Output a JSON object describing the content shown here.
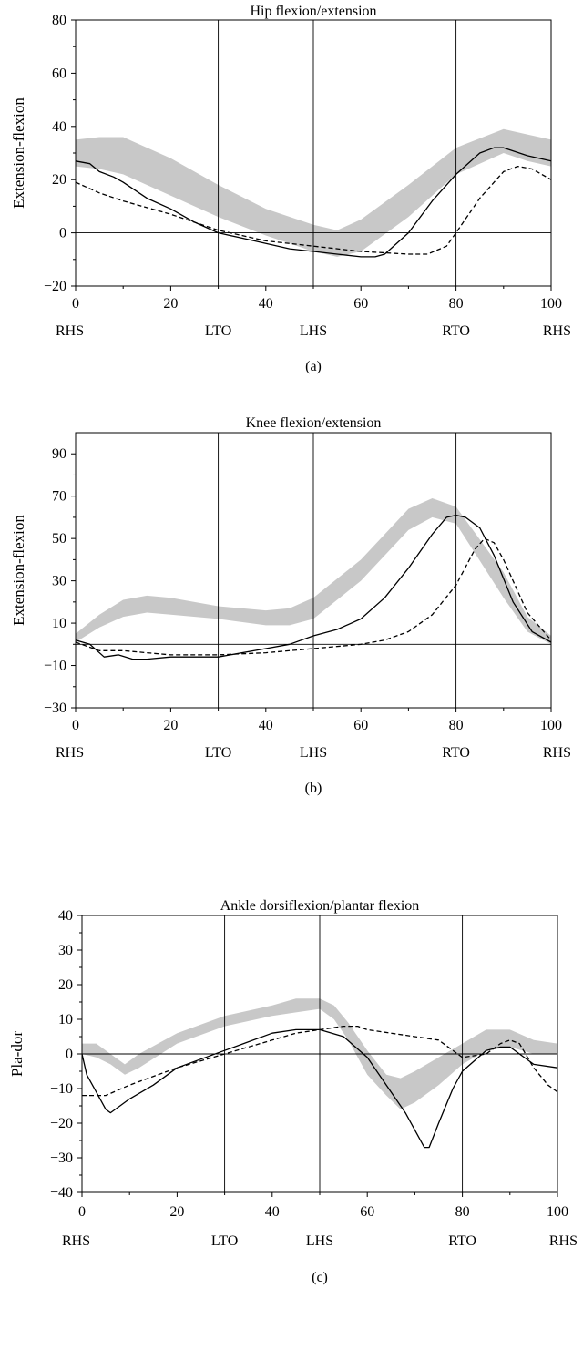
{
  "chart_data": [
    {
      "type": "line",
      "title": "Hip flexion/extension",
      "ylabel": "Extension-flexion",
      "xlabel": "",
      "xlim": [
        0,
        100
      ],
      "ylim": [
        -20,
        80
      ],
      "xticks": [
        0,
        20,
        40,
        60,
        80,
        100
      ],
      "yticks": [
        -20,
        0,
        20,
        40,
        60,
        80
      ],
      "ytick_labels": [
        "−20",
        "0",
        "20",
        "40",
        "60",
        "80"
      ],
      "event_lines": [
        30,
        50,
        80
      ],
      "event_labels": [
        {
          "x": 0,
          "label": "RHS"
        },
        {
          "x": 30,
          "label": "LTO"
        },
        {
          "x": 50,
          "label": "LHS"
        },
        {
          "x": 80,
          "label": "RTO"
        },
        {
          "x": 100,
          "label": "RHS"
        }
      ],
      "zero_line": 0,
      "subcaption": "(a)",
      "grid": false,
      "band": {
        "x": [
          0,
          5,
          10,
          20,
          30,
          40,
          50,
          55,
          60,
          70,
          80,
          90,
          95,
          100
        ],
        "upper": [
          35,
          36,
          36,
          28,
          18,
          9,
          3,
          1,
          5,
          18,
          32,
          39,
          37,
          35
        ],
        "lower": [
          25,
          24,
          22,
          14,
          6,
          -1,
          -7,
          -9,
          -7,
          6,
          22,
          30,
          27,
          25
        ]
      },
      "series": [
        {
          "style": "solid",
          "x": [
            0,
            3,
            5,
            8,
            10,
            15,
            20,
            25,
            30,
            35,
            40,
            45,
            50,
            55,
            60,
            63,
            65,
            70,
            75,
            80,
            85,
            88,
            90,
            95,
            100
          ],
          "values": [
            27,
            26,
            23,
            21,
            19,
            13,
            9,
            4,
            0,
            -2,
            -4,
            -6,
            -7,
            -8,
            -9,
            -9,
            -8,
            0,
            12,
            22,
            30,
            32,
            32,
            29,
            27
          ]
        },
        {
          "style": "dashed",
          "x": [
            0,
            5,
            10,
            20,
            30,
            40,
            50,
            60,
            70,
            74,
            78,
            80,
            85,
            90,
            93,
            96,
            100
          ],
          "values": [
            19,
            15,
            12,
            7,
            1,
            -3,
            -5,
            -7,
            -8,
            -8,
            -5,
            0,
            13,
            23,
            25,
            24,
            20
          ]
        }
      ]
    },
    {
      "type": "line",
      "title": "Knee flexion/extension",
      "ylabel": "Extension-flexion",
      "xlabel": "",
      "xlim": [
        0,
        100
      ],
      "ylim": [
        -30,
        100
      ],
      "xticks": [
        0,
        20,
        40,
        60,
        80,
        100
      ],
      "yticks": [
        -30,
        -10,
        10,
        30,
        50,
        70,
        90
      ],
      "ytick_labels": [
        "−30",
        "−10",
        "10",
        "30",
        "50",
        "70",
        "90"
      ],
      "event_lines": [
        30,
        50,
        80
      ],
      "event_labels": [
        {
          "x": 0,
          "label": "RHS"
        },
        {
          "x": 30,
          "label": "LTO"
        },
        {
          "x": 50,
          "label": "LHS"
        },
        {
          "x": 80,
          "label": "RTO"
        },
        {
          "x": 100,
          "label": "RHS"
        }
      ],
      "zero_line": 0,
      "subcaption": "(b)",
      "grid": false,
      "band": {
        "x": [
          0,
          5,
          10,
          15,
          20,
          30,
          40,
          45,
          50,
          60,
          70,
          75,
          80,
          90,
          95,
          100
        ],
        "upper": [
          5,
          14,
          21,
          23,
          22,
          18,
          16,
          17,
          22,
          40,
          64,
          69,
          65,
          34,
          13,
          4
        ],
        "lower": [
          1,
          8,
          13,
          15,
          14,
          12,
          9,
          9,
          12,
          30,
          54,
          60,
          57,
          22,
          6,
          0
        ]
      },
      "series": [
        {
          "style": "solid",
          "x": [
            0,
            3,
            6,
            9,
            12,
            15,
            20,
            30,
            40,
            45,
            50,
            55,
            60,
            65,
            70,
            75,
            78,
            80,
            82,
            85,
            88,
            92,
            96,
            100
          ],
          "values": [
            2,
            0,
            -6,
            -5,
            -7,
            -7,
            -6,
            -6,
            -2,
            0,
            4,
            7,
            12,
            22,
            36,
            52,
            60,
            61,
            60,
            55,
            42,
            20,
            6,
            1
          ]
        },
        {
          "style": "dashed",
          "x": [
            0,
            5,
            10,
            20,
            30,
            40,
            50,
            60,
            65,
            70,
            75,
            80,
            84,
            86,
            88,
            90,
            95,
            100
          ],
          "values": [
            1,
            -3,
            -3,
            -5,
            -5,
            -4,
            -2,
            0,
            2,
            6,
            14,
            28,
            45,
            50,
            48,
            40,
            15,
            2
          ]
        }
      ]
    },
    {
      "type": "line",
      "title": "Ankle dorsiflexion/plantar flexion",
      "ylabel": "Pla-dor",
      "xlabel": "",
      "xlim": [
        0,
        100
      ],
      "ylim": [
        -40,
        40
      ],
      "xticks": [
        0,
        20,
        40,
        60,
        80,
        100
      ],
      "yticks": [
        -40,
        -30,
        -20,
        -10,
        0,
        10,
        20,
        30,
        40
      ],
      "ytick_labels": [
        "−40",
        "−30",
        "−20",
        "−10",
        "0",
        "10",
        "20",
        "30",
        "40"
      ],
      "event_lines": [
        30,
        50,
        80
      ],
      "event_labels": [
        {
          "x": 0,
          "label": "RHS"
        },
        {
          "x": 30,
          "label": "LTO"
        },
        {
          "x": 50,
          "label": "LHS"
        },
        {
          "x": 80,
          "label": "RTO"
        },
        {
          "x": 100,
          "label": "RHS"
        }
      ],
      "zero_line": 0,
      "subcaption": "(c)",
      "grid": false,
      "band": {
        "x": [
          0,
          3,
          6,
          9,
          12,
          20,
          30,
          40,
          45,
          50,
          53,
          56,
          60,
          64,
          67,
          70,
          75,
          80,
          85,
          90,
          95,
          100
        ],
        "upper": [
          3,
          3,
          0,
          -3,
          0,
          6,
          11,
          14,
          16,
          16,
          14,
          9,
          1,
          -6,
          -7,
          -5,
          -1,
          3,
          7,
          7,
          4,
          3
        ],
        "lower": [
          0,
          -1,
          -3,
          -6,
          -4,
          3,
          8,
          11,
          12,
          13,
          10,
          4,
          -6,
          -12,
          -16,
          -14,
          -9,
          -3,
          1,
          2,
          0,
          0
        ]
      },
      "series": [
        {
          "style": "solid",
          "x": [
            0,
            1,
            3,
            5,
            6,
            8,
            10,
            15,
            20,
            30,
            40,
            45,
            50,
            55,
            60,
            64,
            68,
            70,
            72,
            73,
            75,
            78,
            80,
            85,
            88,
            90,
            95,
            100
          ],
          "values": [
            0,
            -6,
            -11,
            -16,
            -17,
            -15,
            -13,
            -9,
            -4,
            1,
            6,
            7,
            7,
            5,
            -1,
            -9,
            -17,
            -22,
            -27,
            -27,
            -20,
            -10,
            -5,
            1,
            2,
            2,
            -3,
            -4
          ]
        },
        {
          "style": "dashed",
          "x": [
            0,
            5,
            10,
            20,
            30,
            40,
            45,
            50,
            55,
            58,
            60,
            70,
            75,
            80,
            85,
            88,
            90,
            92,
            95,
            98,
            100
          ],
          "values": [
            -12,
            -12,
            -9,
            -4,
            0,
            4,
            6,
            7,
            8,
            8,
            7,
            5,
            4,
            -1,
            0,
            3,
            4,
            3,
            -4,
            -9,
            -11
          ]
        }
      ]
    }
  ]
}
